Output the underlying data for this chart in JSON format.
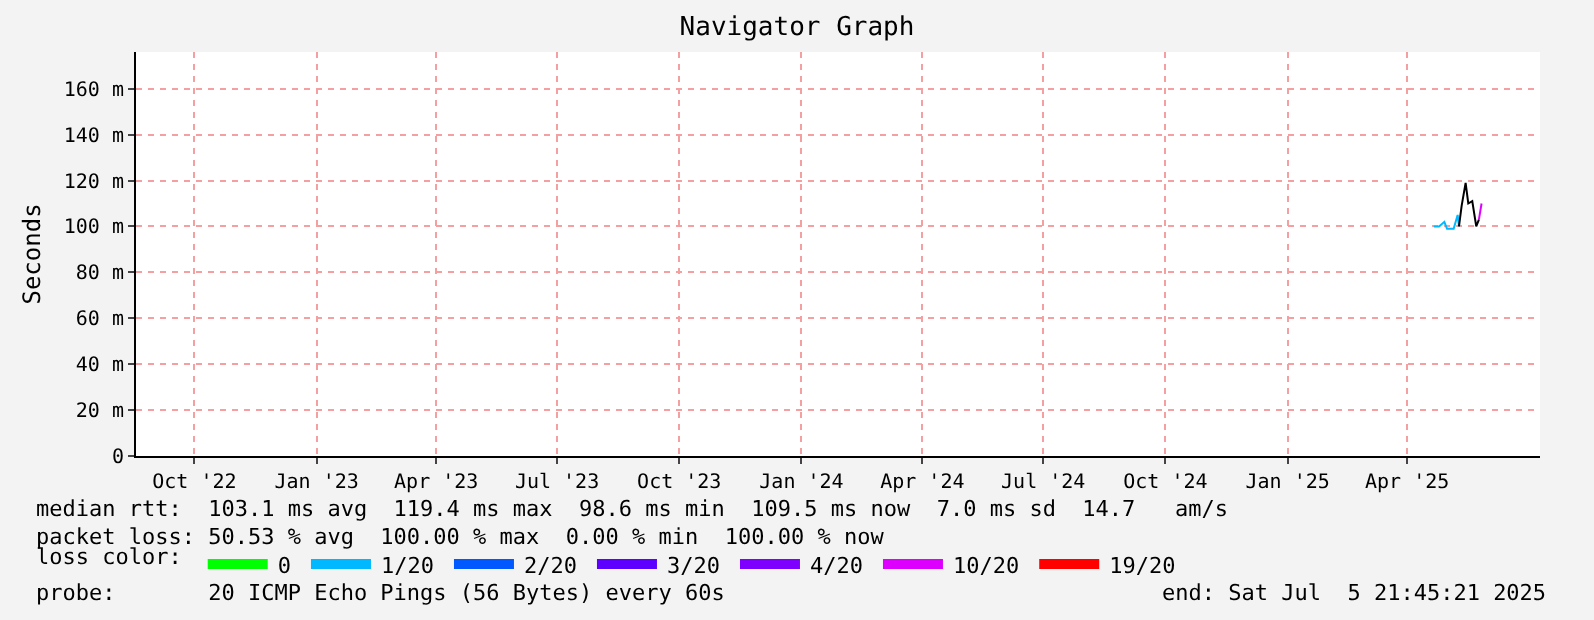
{
  "chart_data": {
    "type": "line",
    "title": "Navigator Graph",
    "ylabel": "Seconds",
    "xlim": [
      "2022-08-18",
      "2025-07-10"
    ],
    "xticks": [
      {
        "value": "2022-10-01",
        "label": "Oct '22"
      },
      {
        "value": "2023-01-01",
        "label": "Jan '23"
      },
      {
        "value": "2023-04-01",
        "label": "Apr '23"
      },
      {
        "value": "2023-07-01",
        "label": "Jul '23"
      },
      {
        "value": "2023-10-01",
        "label": "Oct '23"
      },
      {
        "value": "2024-01-01",
        "label": "Jan '24"
      },
      {
        "value": "2024-04-01",
        "label": "Apr '24"
      },
      {
        "value": "2024-07-01",
        "label": "Jul '24"
      },
      {
        "value": "2024-10-01",
        "label": "Oct '24"
      },
      {
        "value": "2025-01-01",
        "label": "Jan '25"
      },
      {
        "value": "2025-04-01",
        "label": "Apr '25"
      }
    ],
    "ylim": [
      0,
      176
    ],
    "yticks": [
      0,
      {
        "value": 20,
        "label": "20 m"
      },
      {
        "value": 40,
        "label": "40 m"
      },
      {
        "value": 60,
        "label": "60 m"
      },
      {
        "value": 80,
        "label": "80 m"
      },
      {
        "value": 100,
        "label": "100 m"
      },
      {
        "value": 120,
        "label": "120 m"
      },
      {
        "value": 140,
        "label": "140 m"
      },
      {
        "value": 160,
        "label": "160 m"
      }
    ],
    "grid": true,
    "legend": "bottom",
    "legend_title": "loss color:",
    "marker": "none",
    "line_style": "solid",
    "series": [
      {
        "name": "0",
        "color": "#00ff00"
      },
      {
        "name": "1/20",
        "color": "#00b8ff",
        "x": [
          "2025-04-21",
          "2025-04-25",
          "2025-04-29",
          "2025-05-01",
          "2025-05-06",
          "2025-05-09",
          "2025-05-10"
        ],
        "values": [
          100,
          100,
          102,
          99,
          99,
          105,
          100
        ]
      },
      {
        "name": "2/20",
        "color": "#0059ff"
      },
      {
        "name": "3/20",
        "color": "#5e00ff"
      },
      {
        "name": "4/20",
        "color": "#7e00ff"
      },
      {
        "name": "10/20",
        "color": "#dd00ff",
        "x": [
          "2025-05-25",
          "2025-05-27"
        ],
        "values": [
          103,
          110
        ]
      },
      {
        "name": "19/20",
        "color": "#ff0000"
      },
      {
        "color": "#000000",
        "x": [
          "2025-05-10",
          "2025-05-12",
          "2025-05-15",
          "2025-05-17",
          "2025-05-20",
          "2025-05-23",
          "2025-05-25"
        ],
        "values": [
          100,
          109,
          119,
          110,
          111,
          100,
          103
        ]
      }
    ],
    "annotations": [
      "median rtt:  103.1 ms avg  119.4 ms max  98.6 ms min  109.5 ms now  7.0 ms sd  14.7   am/s",
      "packet loss: 50.53 % avg  100.00 % max  0.00 % min  100.00 % now",
      "probe:       20 ICMP Echo Pings (56 Bytes) every 60s",
      "end: Sat Jul  5 21:45:21 2025"
    ]
  }
}
